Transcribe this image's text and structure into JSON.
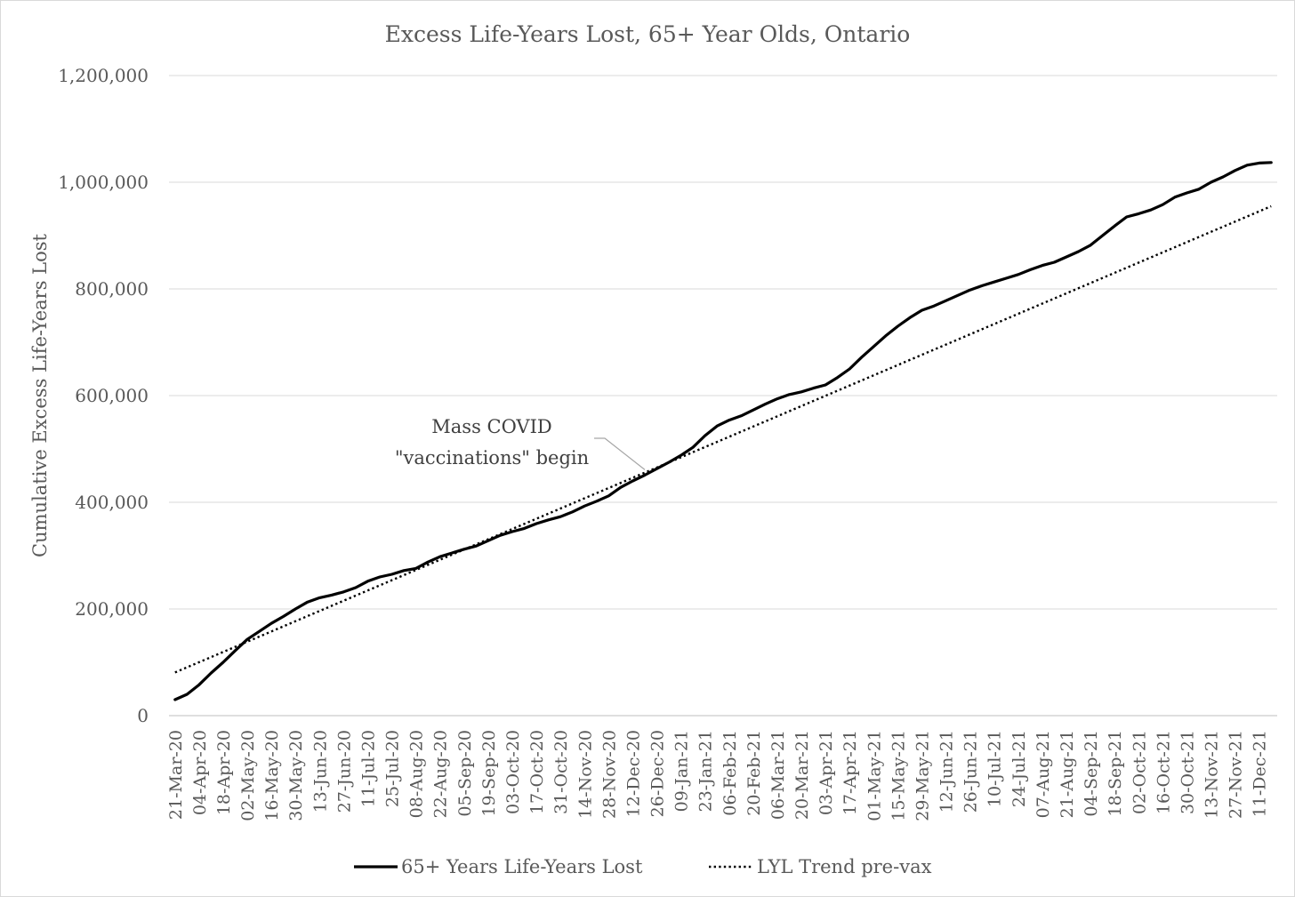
{
  "chart_data": {
    "type": "line",
    "title": "Excess Life-Years Lost, 65+ Year Olds, Ontario",
    "xlabel": "",
    "ylabel": "Cumulative Excess Life-Years Lost",
    "ylim": [
      0,
      1200000
    ],
    "yticks": [
      "0",
      "200,000",
      "400,000",
      "600,000",
      "800,000",
      "1,000,000",
      "1,200,000"
    ],
    "grid": "horizontal",
    "legend_position": "bottom",
    "x": [
      "21-Mar-20",
      "28-Mar-20",
      "04-Apr-20",
      "11-Apr-20",
      "18-Apr-20",
      "25-Apr-20",
      "02-May-20",
      "09-May-20",
      "16-May-20",
      "23-May-20",
      "30-May-20",
      "06-Jun-20",
      "13-Jun-20",
      "20-Jun-20",
      "27-Jun-20",
      "04-Jul-20",
      "11-Jul-20",
      "18-Jul-20",
      "25-Jul-20",
      "01-Aug-20",
      "08-Aug-20",
      "15-Aug-20",
      "22-Aug-20",
      "29-Aug-20",
      "05-Sep-20",
      "12-Sep-20",
      "19-Sep-20",
      "26-Sep-20",
      "03-Oct-20",
      "10-Oct-20",
      "17-Oct-20",
      "24-Oct-20",
      "31-Oct-20",
      "07-Nov-20",
      "14-Nov-20",
      "21-Nov-20",
      "28-Nov-20",
      "05-Dec-20",
      "12-Dec-20",
      "19-Dec-20",
      "26-Dec-20",
      "02-Jan-21",
      "09-Jan-21",
      "16-Jan-21",
      "23-Jan-21",
      "30-Jan-21",
      "06-Feb-21",
      "13-Feb-21",
      "20-Feb-21",
      "27-Feb-21",
      "06-Mar-21",
      "13-Mar-21",
      "20-Mar-21",
      "27-Mar-21",
      "03-Apr-21",
      "10-Apr-21",
      "17-Apr-21",
      "24-Apr-21",
      "01-May-21",
      "08-May-21",
      "15-May-21",
      "22-May-21",
      "29-May-21",
      "05-Jun-21",
      "12-Jun-21",
      "19-Jun-21",
      "26-Jun-21",
      "03-Jul-21",
      "10-Jul-21",
      "17-Jul-21",
      "24-Jul-21",
      "31-Jul-21",
      "07-Aug-21",
      "14-Aug-21",
      "21-Aug-21",
      "28-Aug-21",
      "04-Sep-21",
      "11-Sep-21",
      "18-Sep-21",
      "25-Sep-21",
      "02-Oct-21",
      "09-Oct-21",
      "16-Oct-21",
      "23-Oct-21",
      "30-Oct-21",
      "06-Nov-21",
      "13-Nov-21",
      "20-Nov-21",
      "27-Nov-21",
      "04-Dec-21",
      "11-Dec-21",
      "18-Dec-21"
    ],
    "xtick_labels": [
      "21-Mar-20",
      "04-Apr-20",
      "18-Apr-20",
      "02-May-20",
      "16-May-20",
      "30-May-20",
      "13-Jun-20",
      "27-Jun-20",
      "11-Jul-20",
      "25-Jul-20",
      "08-Aug-20",
      "22-Aug-20",
      "05-Sep-20",
      "19-Sep-20",
      "03-Oct-20",
      "17-Oct-20",
      "31-Oct-20",
      "14-Nov-20",
      "28-Nov-20",
      "12-Dec-20",
      "26-Dec-20",
      "09-Jan-21",
      "23-Jan-21",
      "06-Feb-21",
      "20-Feb-21",
      "06-Mar-21",
      "20-Mar-21",
      "03-Apr-21",
      "17-Apr-21",
      "01-May-21",
      "15-May-21",
      "29-May-21",
      "12-Jun-21",
      "26-Jun-21",
      "10-Jul-21",
      "24-Jul-21",
      "07-Aug-21",
      "21-Aug-21",
      "04-Sep-21",
      "18-Sep-21",
      "02-Oct-21",
      "16-Oct-21",
      "30-Oct-21",
      "13-Nov-21",
      "27-Nov-21",
      "11-Dec-21"
    ],
    "series": [
      {
        "name": "65+ Years Life-Years Lost",
        "style": "solid",
        "values": [
          30000,
          40000,
          58000,
          80000,
          100000,
          122000,
          143000,
          158000,
          173000,
          186000,
          200000,
          213000,
          221000,
          226000,
          232000,
          240000,
          252000,
          260000,
          265000,
          272000,
          276000,
          288000,
          298000,
          305000,
          312000,
          318000,
          328000,
          338000,
          345000,
          351000,
          360000,
          367000,
          373000,
          382000,
          393000,
          402000,
          412000,
          428000,
          440000,
          451000,
          463000,
          475000,
          488000,
          503000,
          525000,
          543000,
          554000,
          562000,
          573000,
          584000,
          594000,
          602000,
          607000,
          614000,
          620000,
          634000,
          650000,
          672000,
          692000,
          712000,
          730000,
          746000,
          760000,
          768000,
          778000,
          788000,
          798000,
          806000,
          813000,
          820000,
          827000,
          836000,
          844000,
          850000,
          860000,
          870000,
          882000,
          900000,
          918000,
          935000,
          941000,
          948000,
          958000,
          972000,
          980000,
          987000,
          1000000,
          1010000,
          1022000,
          1032000,
          1036000,
          1037000
        ]
      },
      {
        "name": "LYL Trend pre-vax",
        "style": "dotted",
        "start": 81000,
        "end": 955000
      }
    ],
    "annotation": {
      "lines": [
        "Mass COVID",
        "\"vaccinations\" begin"
      ],
      "points_to": "19-Dec-20"
    }
  },
  "colors": {
    "line": "#000000",
    "grid": "#d9d9d9",
    "text": "#595959",
    "leader": "#a6a6a6"
  }
}
